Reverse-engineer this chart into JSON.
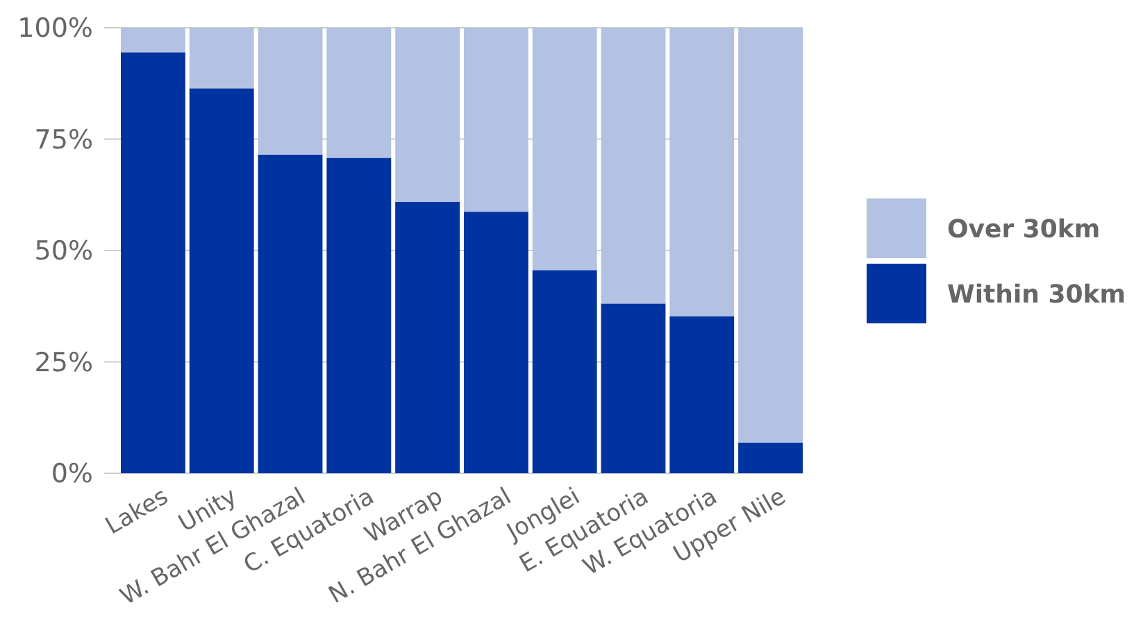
{
  "chart_data": {
    "type": "bar",
    "stacked": true,
    "categories": [
      "Lakes",
      "Unity",
      "W. Bahr El Ghazal",
      "C. Equatoria",
      "Warrap",
      "N. Bahr El Ghazal",
      "Jonglei",
      "E. Equatoria",
      "W. Equatoria",
      "Upper Nile"
    ],
    "series": [
      {
        "name": "Within 30km",
        "color": "#0033a0",
        "values": [
          94.5,
          86.4,
          71.5,
          70.8,
          60.9,
          58.7,
          45.6,
          38.1,
          35.2,
          6.9
        ]
      },
      {
        "name": "Over 30km",
        "color": "#b3c2e3",
        "values": [
          5.5,
          13.6,
          28.5,
          29.2,
          39.1,
          41.3,
          54.4,
          61.9,
          64.8,
          93.1
        ]
      }
    ],
    "ylim": [
      0,
      100
    ],
    "yticks": [
      {
        "value": 0,
        "label": "0%"
      },
      {
        "value": 25,
        "label": "25%"
      },
      {
        "value": 50,
        "label": "50%"
      },
      {
        "value": 75,
        "label": "75%"
      },
      {
        "value": 100,
        "label": "100%"
      }
    ],
    "grid": "y",
    "legend": "right"
  }
}
